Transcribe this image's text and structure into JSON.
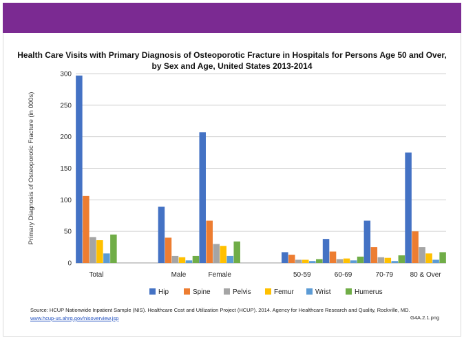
{
  "chart_data": {
    "type": "bar",
    "title": "Health Care Visits with Primary Diagnosis of Osteoporotic Fracture in Hospitals for Persons Age 50 and Over, by Sex and Age, United States 2013-2014",
    "xlabel": "",
    "ylabel": "Primary Diagnosis of Osteoporotic Fracture (in 000s)",
    "ylim": [
      0,
      300
    ],
    "yticks": [
      0,
      50,
      100,
      150,
      200,
      250,
      300
    ],
    "grid": true,
    "legend_position": "bottom",
    "categories": [
      "Total",
      "",
      "Male",
      "Female",
      "",
      "50-59",
      "60-69",
      "70-79",
      "80 & Over"
    ],
    "series": [
      {
        "name": "Hip",
        "color": "#4472c4",
        "values": [
          297,
          null,
          89,
          207,
          null,
          17,
          38,
          67,
          175
        ]
      },
      {
        "name": "Spine",
        "color": "#ed7d31",
        "values": [
          106,
          null,
          40,
          67,
          null,
          13,
          18,
          25,
          50
        ]
      },
      {
        "name": "Pelvis",
        "color": "#a5a5a5",
        "values": [
          41,
          null,
          11,
          30,
          null,
          5,
          6,
          9,
          25
        ]
      },
      {
        "name": "Femur",
        "color": "#ffc000",
        "values": [
          36,
          null,
          9,
          27,
          null,
          5,
          7,
          8,
          15
        ]
      },
      {
        "name": "Wrist",
        "color": "#5b9bd5",
        "values": [
          15,
          null,
          4,
          11,
          null,
          3,
          4,
          3,
          5
        ]
      },
      {
        "name": "Humerus",
        "color": "#70ad47",
        "values": [
          45,
          null,
          11,
          34,
          null,
          6,
          10,
          12,
          17
        ]
      }
    ]
  },
  "footer": {
    "source_text": "Source: HCUP Nationwide Inpatient Sample (NIS). Healthcare Cost and Utilization Project (HCUP). 2014. Agency for Healthcare Research and Quality, Rockville, MD.",
    "source_link": "www.hcup-us.ahrq.gov/nisoverview.jsp",
    "file_id": "G4A.2.1.png"
  }
}
